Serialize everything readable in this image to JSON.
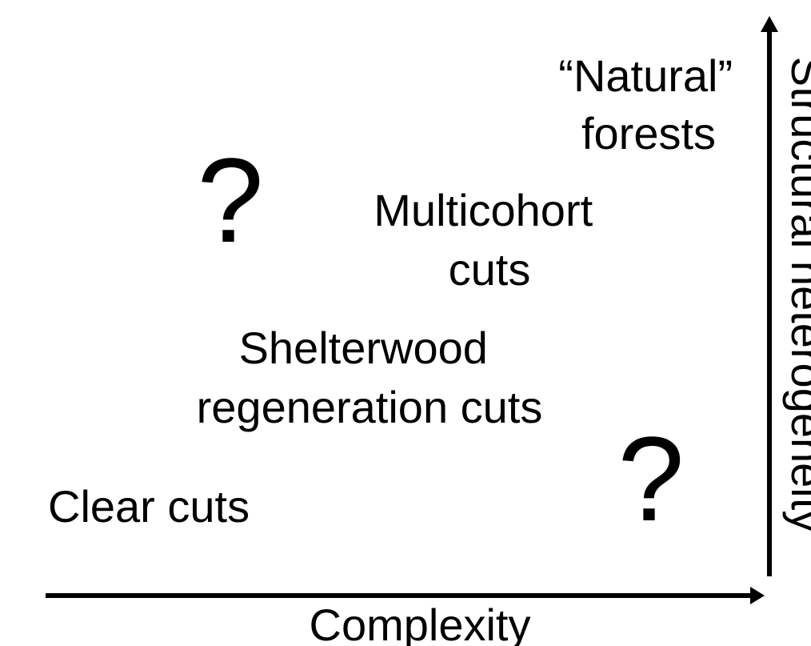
{
  "labels": {
    "natural": [
      "“Natural”",
      "forests"
    ],
    "multicohort": [
      "Multicohort",
      "cuts"
    ],
    "shelterwood": [
      "Shelterwood",
      "regeneration cuts"
    ],
    "clear": [
      "Clear cuts"
    ],
    "question_upper": "?",
    "question_lower": "?"
  },
  "axes": {
    "x_label": "Complexity",
    "y_label": "Structural heterogeneity"
  }
}
